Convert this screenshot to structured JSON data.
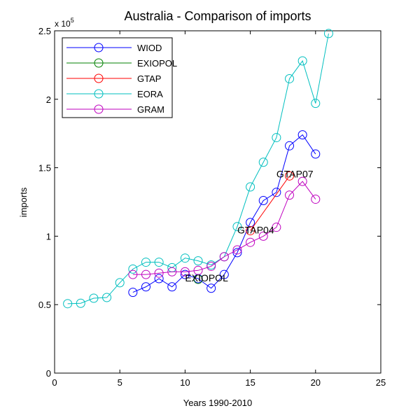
{
  "chart_data": {
    "type": "line",
    "title": "Australia - Comparison of imports",
    "xlabel": "Years 1990-2010",
    "ylabel": "imports",
    "y_multiplier": "x 10",
    "y_multiplier_exp": "5",
    "xlim": [
      0,
      25
    ],
    "ylim": [
      0,
      2.5
    ],
    "xticks": [
      0,
      5,
      10,
      15,
      20,
      25
    ],
    "xtick_labels": [
      "0",
      "5",
      "10",
      "15",
      "20",
      "25"
    ],
    "yticks": [
      0,
      0.5,
      1,
      1.5,
      2,
      2.5
    ],
    "ytick_labels": [
      "0",
      "0.5",
      "1",
      "1.5",
      "2",
      "2.5"
    ],
    "grid": false,
    "legend_position": "top-left",
    "series": [
      {
        "name": "WIOD",
        "color": "#0000ff",
        "x": [
          6,
          7,
          8,
          9,
          10,
          11,
          12,
          13,
          14,
          15,
          16,
          17,
          18,
          19,
          20
        ],
        "values": [
          0.59,
          0.63,
          0.69,
          0.63,
          0.72,
          0.69,
          0.62,
          0.72,
          0.88,
          1.1,
          1.26,
          1.32,
          1.66,
          1.74,
          1.6
        ]
      },
      {
        "name": "EXIOPOL",
        "color": "#008000",
        "x": [
          11
        ],
        "values": [
          0.685
        ]
      },
      {
        "name": "GTAP",
        "color": "#ff0000",
        "x": [
          15,
          18
        ],
        "values": [
          1.04,
          1.44
        ]
      },
      {
        "name": "EORA",
        "color": "#00bfbf",
        "x": [
          1,
          2,
          3,
          4,
          5,
          6,
          7,
          8,
          9,
          10,
          11,
          12,
          13,
          14,
          15,
          16,
          17,
          18,
          19,
          20,
          21
        ],
        "values": [
          0.507,
          0.51,
          0.547,
          0.552,
          0.66,
          0.76,
          0.81,
          0.81,
          0.77,
          0.84,
          0.82,
          0.79,
          0.85,
          1.07,
          1.36,
          1.54,
          1.72,
          2.15,
          2.28,
          1.97,
          2.48
        ]
      },
      {
        "name": "GRAM",
        "color": "#bf00bf",
        "x": [
          6,
          7,
          8,
          9,
          10,
          11,
          12,
          13,
          14,
          15,
          16,
          17,
          18,
          19,
          20
        ],
        "values": [
          0.72,
          0.72,
          0.73,
          0.74,
          0.74,
          0.75,
          0.78,
          0.85,
          0.9,
          0.955,
          1.0,
          1.065,
          1.3,
          1.4,
          1.27
        ]
      }
    ],
    "annotations": [
      {
        "text": "EXIOPOL",
        "x": 10,
        "y": 0.69
      },
      {
        "text": "GTAP04",
        "x": 14,
        "y": 1.04
      },
      {
        "text": "GTAP07",
        "x": 17,
        "y": 1.45
      }
    ]
  }
}
